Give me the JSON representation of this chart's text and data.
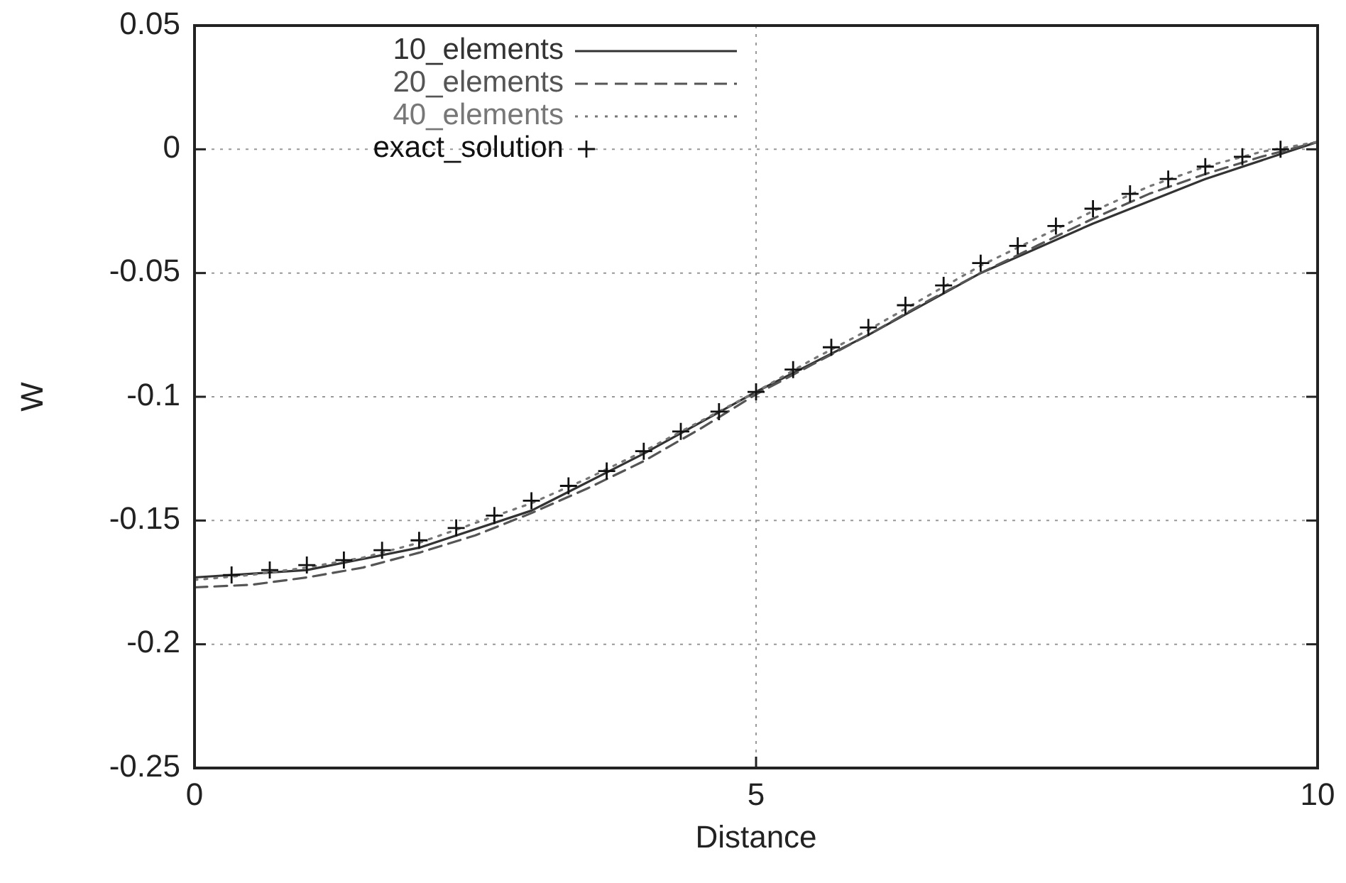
{
  "chart_data": {
    "type": "line",
    "xlabel": "Distance",
    "ylabel": "W",
    "xlim": [
      0,
      10
    ],
    "ylim": [
      -0.25,
      0.05
    ],
    "xticks": [
      0,
      5,
      10
    ],
    "yticks": [
      -0.25,
      -0.2,
      -0.15,
      -0.1,
      -0.05,
      0,
      0.05
    ],
    "grid": true,
    "legend": "top left",
    "series": [
      {
        "name": "10_elements",
        "color": "#333333",
        "line_style": "solid",
        "marker": "none",
        "x": [
          0,
          1,
          2,
          3,
          4,
          5,
          6,
          7,
          8,
          9,
          10
        ],
        "values": [
          -0.173,
          -0.17,
          -0.161,
          -0.146,
          -0.123,
          -0.098,
          -0.075,
          -0.05,
          -0.03,
          -0.012,
          0.003
        ]
      },
      {
        "name": "20_elements",
        "color": "#555555",
        "line_style": "dashed",
        "marker": "none",
        "x": [
          0,
          0.5,
          1,
          1.5,
          2,
          2.5,
          3,
          3.5,
          4,
          4.5,
          5,
          5.5,
          6,
          6.5,
          7,
          7.5,
          8,
          8.5,
          9,
          9.5,
          10
        ],
        "values": [
          -0.177,
          -0.176,
          -0.173,
          -0.169,
          -0.163,
          -0.156,
          -0.147,
          -0.137,
          -0.126,
          -0.113,
          -0.099,
          -0.087,
          -0.075,
          -0.062,
          -0.05,
          -0.039,
          -0.028,
          -0.018,
          -0.01,
          -0.003,
          0.003
        ]
      },
      {
        "name": "40_elements",
        "color": "#777777",
        "line_style": "dotted",
        "marker": "none",
        "x": [
          0,
          0.5,
          1,
          1.5,
          2,
          2.5,
          3,
          3.5,
          4,
          4.5,
          5,
          5.5,
          6,
          6.5,
          7,
          7.5,
          8,
          8.5,
          9,
          9.5,
          10
        ],
        "values": [
          -0.174,
          -0.172,
          -0.169,
          -0.165,
          -0.159,
          -0.151,
          -0.143,
          -0.133,
          -0.122,
          -0.11,
          -0.098,
          -0.085,
          -0.073,
          -0.06,
          -0.047,
          -0.036,
          -0.025,
          -0.015,
          -0.007,
          -0.001,
          0.003
        ]
      },
      {
        "name": "exact_solution",
        "color": "#111111",
        "type": "scatter",
        "marker": "cross",
        "x": [
          0.33,
          0.67,
          1,
          1.33,
          1.67,
          2,
          2.33,
          2.67,
          3,
          3.33,
          3.67,
          4,
          4.33,
          4.67,
          5,
          5.33,
          5.67,
          6,
          6.33,
          6.67,
          7,
          7.33,
          7.67,
          8,
          8.33,
          8.67,
          9,
          9.33,
          9.67
        ],
        "values": [
          -0.172,
          -0.17,
          -0.168,
          -0.166,
          -0.162,
          -0.158,
          -0.153,
          -0.148,
          -0.142,
          -0.136,
          -0.13,
          -0.122,
          -0.114,
          -0.106,
          -0.098,
          -0.089,
          -0.08,
          -0.072,
          -0.063,
          -0.055,
          -0.046,
          -0.039,
          -0.031,
          -0.024,
          -0.018,
          -0.012,
          -0.007,
          -0.003,
          0.0
        ]
      }
    ]
  }
}
